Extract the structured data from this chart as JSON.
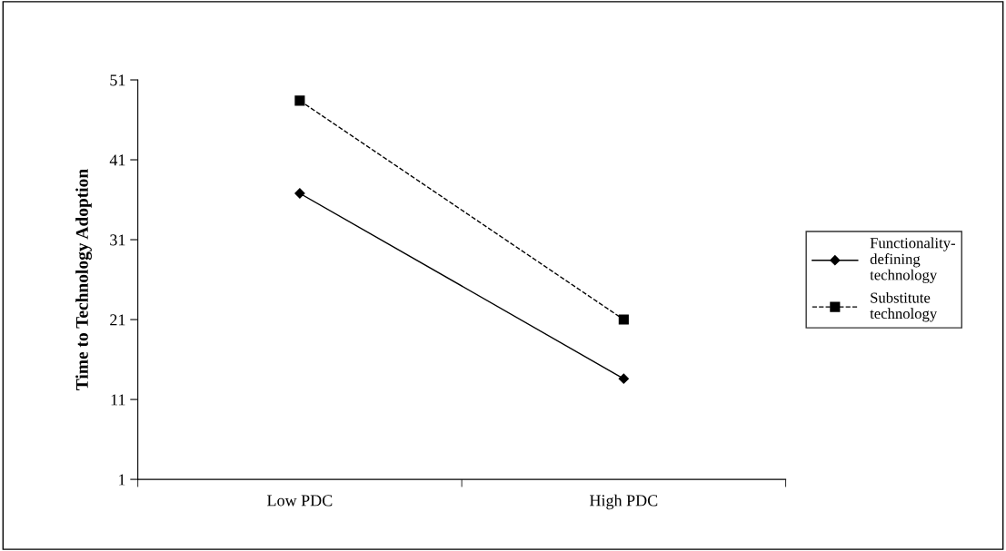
{
  "chart_data": {
    "type": "line",
    "ylabel": "Time to Technology Adoption",
    "categories": [
      "Low PDC",
      "High PDC"
    ],
    "series": [
      {
        "name": "Functionality-\ndefining\ntechnology",
        "color": "#000000",
        "values": [
          36.8,
          13.6
        ],
        "marker": "diamond",
        "line_style": "solid"
      },
      {
        "name": "Substitute\ntechnology",
        "color": "#000000",
        "values": [
          48.4,
          21.0
        ],
        "marker": "square",
        "line_style": "dashed"
      }
    ],
    "ylim": [
      1,
      51
    ],
    "yticks": [
      1,
      11,
      21,
      31,
      41,
      51
    ],
    "grid": false,
    "legend": "right"
  }
}
